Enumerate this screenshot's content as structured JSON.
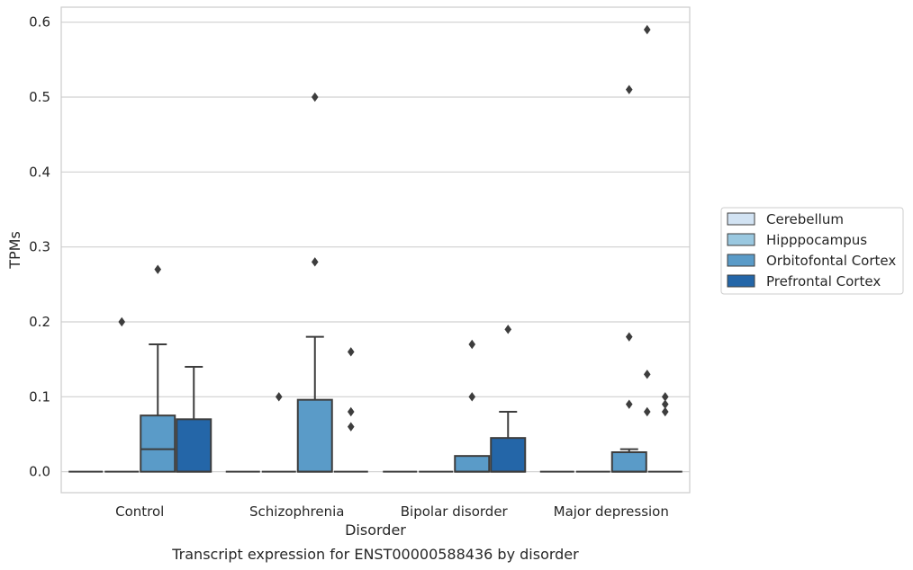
{
  "chart_data": {
    "type": "box",
    "caption": "Transcript expression for ENST00000588436 by disorder",
    "xlabel": "Disorder",
    "ylabel": "TPMs",
    "ylim": [
      -0.028,
      0.62
    ],
    "yticks": [
      0.0,
      0.1,
      0.2,
      0.3,
      0.4,
      0.5,
      0.6
    ],
    "ytick_labels": [
      "0.0",
      "0.1",
      "0.2",
      "0.3",
      "0.4",
      "0.5",
      "0.6"
    ],
    "grid": "horizontal",
    "legend_position": "right",
    "categories": [
      "Control",
      "Schizophrenia",
      "Bipolar disorder",
      "Major depression"
    ],
    "series": [
      {
        "name": "Cerebellum",
        "color": "#d2e3f3",
        "boxes": [
          {
            "category": "Control",
            "q1": 0.0,
            "median": 0.0,
            "q3": 0.0,
            "whisker_low": 0.0,
            "whisker_high": 0.0,
            "outliers": []
          },
          {
            "category": "Schizophrenia",
            "q1": 0.0,
            "median": 0.0,
            "q3": 0.0,
            "whisker_low": 0.0,
            "whisker_high": 0.0,
            "outliers": []
          },
          {
            "category": "Bipolar disorder",
            "q1": 0.0,
            "median": 0.0,
            "q3": 0.0,
            "whisker_low": 0.0,
            "whisker_high": 0.0,
            "outliers": []
          },
          {
            "category": "Major depression",
            "q1": 0.0,
            "median": 0.0,
            "q3": 0.0,
            "whisker_low": 0.0,
            "whisker_high": 0.0,
            "outliers": []
          }
        ]
      },
      {
        "name": "Hipppocampus",
        "color": "#9ac8e0",
        "boxes": [
          {
            "category": "Control",
            "q1": 0.0,
            "median": 0.0,
            "q3": 0.0,
            "whisker_low": 0.0,
            "whisker_high": 0.0,
            "outliers": [
              0.2
            ]
          },
          {
            "category": "Schizophrenia",
            "q1": 0.0,
            "median": 0.0,
            "q3": 0.0,
            "whisker_low": 0.0,
            "whisker_high": 0.0,
            "outliers": [
              0.1
            ]
          },
          {
            "category": "Bipolar disorder",
            "q1": 0.0,
            "median": 0.0,
            "q3": 0.0,
            "whisker_low": 0.0,
            "whisker_high": 0.0,
            "outliers": []
          },
          {
            "category": "Major depression",
            "q1": 0.0,
            "median": 0.0,
            "q3": 0.0,
            "whisker_low": 0.0,
            "whisker_high": 0.0,
            "outliers": []
          }
        ]
      },
      {
        "name": "Orbitofontal Cortex",
        "color": "#5a9bc8",
        "boxes": [
          {
            "category": "Control",
            "q1": 0.0,
            "median": 0.03,
            "q3": 0.075,
            "whisker_low": 0.0,
            "whisker_high": 0.17,
            "outliers": [
              0.27
            ]
          },
          {
            "category": "Schizophrenia",
            "q1": 0.0,
            "median": 0.0,
            "q3": 0.096,
            "whisker_low": 0.0,
            "whisker_high": 0.18,
            "outliers": [
              0.28,
              0.5
            ]
          },
          {
            "category": "Bipolar disorder",
            "q1": 0.0,
            "median": 0.0,
            "q3": 0.021,
            "whisker_low": 0.0,
            "whisker_high": 0.021,
            "outliers": [
              0.1,
              0.17
            ]
          },
          {
            "category": "Major depression",
            "q1": 0.0,
            "median": 0.0,
            "q3": 0.026,
            "whisker_low": 0.0,
            "whisker_high": 0.03,
            "outliers": [
              0.09,
              0.18,
              0.51
            ]
          }
        ]
      },
      {
        "name": "Prefrontal Cortex",
        "color": "#2466a8",
        "boxes": [
          {
            "category": "Control",
            "q1": 0.0,
            "median": 0.0,
            "q3": 0.07,
            "whisker_low": 0.0,
            "whisker_high": 0.14,
            "outliers": []
          },
          {
            "category": "Schizophrenia",
            "q1": 0.0,
            "median": 0.0,
            "q3": 0.0,
            "whisker_low": 0.0,
            "whisker_high": 0.0,
            "outliers": [
              0.06,
              0.08,
              0.16
            ]
          },
          {
            "category": "Bipolar disorder",
            "q1": 0.0,
            "median": 0.0,
            "q3": 0.045,
            "whisker_low": 0.0,
            "whisker_high": 0.08,
            "outliers": [
              0.19
            ]
          },
          {
            "category": "Major depression",
            "q1": 0.0,
            "median": 0.0,
            "q3": 0.0,
            "whisker_low": 0.0,
            "whisker_high": 0.0,
            "outliers": [
              0.08,
              0.09,
              0.1
            ]
          }
        ]
      }
    ],
    "extra_outliers": [
      {
        "category": "Major depression",
        "series": "Orbitofontal Cortex",
        "values": [
          0.08,
          0.13,
          0.59
        ]
      }
    ]
  }
}
